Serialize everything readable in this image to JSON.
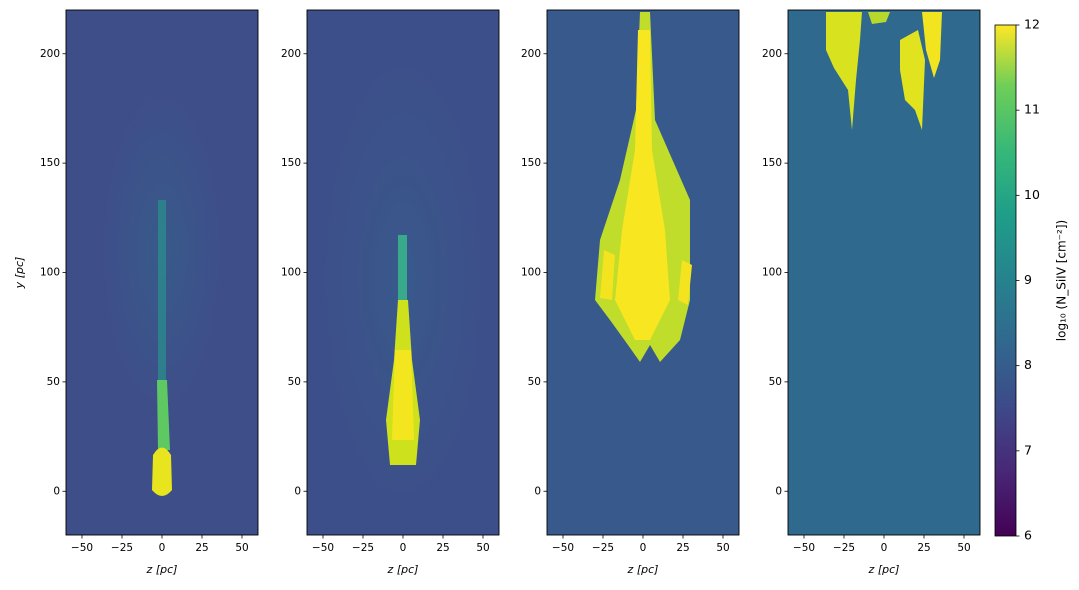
{
  "chart_data": [
    {
      "type": "image",
      "background_color": "#3e4e89",
      "xlim": [
        -60,
        60
      ],
      "ylim": [
        -20,
        220
      ],
      "xticks": [
        {
          "value": -50,
          "label": "−50"
        },
        {
          "value": -25,
          "label": "−25"
        },
        0,
        25,
        50
      ],
      "yticks": [
        0,
        50,
        100,
        150,
        200
      ],
      "xlabel": "z [pc]",
      "ylabel": "y [pc]"
    },
    {
      "type": "image",
      "background_color": "#3d4f8a",
      "xlim": [
        -60,
        60
      ],
      "ylim": [
        -20,
        220
      ],
      "xticks": [
        {
          "value": -50,
          "label": "−50"
        },
        {
          "value": -25,
          "label": "−25"
        },
        0,
        25,
        50
      ],
      "yticks": [
        0,
        50,
        100,
        150,
        200
      ],
      "xlabel": "z [pc]"
    },
    {
      "type": "image",
      "background_color": "#37598c",
      "xlim": [
        -60,
        60
      ],
      "ylim": [
        -20,
        220
      ],
      "xticks": [
        {
          "value": -50,
          "label": "−50"
        },
        {
          "value": -25,
          "label": "−25"
        },
        0,
        25,
        50
      ],
      "yticks": [
        0,
        50,
        100,
        150,
        200
      ],
      "xlabel": "z [pc]"
    },
    {
      "type": "image",
      "background_color": "#30698e",
      "xlim": [
        -60,
        60
      ],
      "ylim": [
        -20,
        220
      ],
      "xticks": [
        {
          "value": -50,
          "label": "−50"
        },
        {
          "value": -25,
          "label": "−25"
        },
        0,
        25,
        50
      ],
      "yticks": [
        0,
        50,
        100,
        150,
        200
      ],
      "xlabel": "z [pc]"
    }
  ],
  "colorbar": {
    "lim": [
      6,
      12
    ],
    "ticks": [
      6,
      7,
      8,
      9,
      10,
      11,
      12
    ],
    "label": "log₁₀  (N_SiIV [cm⁻²])",
    "colormap": "viridis"
  }
}
